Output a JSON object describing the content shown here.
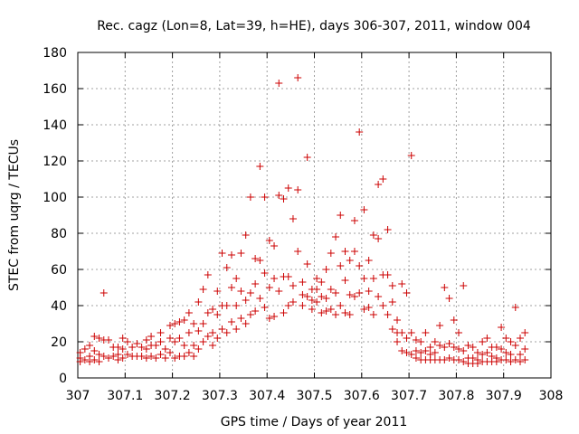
{
  "chart_data": {
    "type": "scatter",
    "title": "Rec. cagz (Lon=8, Lat=39, h=HE), days 306-307, 2011, window 004",
    "xlabel": "GPS time / Days of year 2011",
    "ylabel": "STEC from uqrg / TECUs",
    "xlim": [
      307,
      308
    ],
    "ylim": [
      0,
      180
    ],
    "grid": true,
    "marker": "+",
    "color": "#cc0000",
    "x_ticks": [
      {
        "value": 307.0,
        "label": "307"
      },
      {
        "value": 307.1,
        "label": "307.1"
      },
      {
        "value": 307.2,
        "label": "307.2"
      },
      {
        "value": 307.3,
        "label": "307.3"
      },
      {
        "value": 307.4,
        "label": "307.4"
      },
      {
        "value": 307.5,
        "label": "307.5"
      },
      {
        "value": 307.6,
        "label": "307.6"
      },
      {
        "value": 307.7,
        "label": "307.7"
      },
      {
        "value": 307.8,
        "label": "307.8"
      },
      {
        "value": 307.9,
        "label": "307.9"
      },
      {
        "value": 308.0,
        "label": "308"
      }
    ],
    "y_ticks": [
      {
        "value": 0,
        "label": "0"
      },
      {
        "value": 20,
        "label": "20"
      },
      {
        "value": 40,
        "label": "40"
      },
      {
        "value": 60,
        "label": "60"
      },
      {
        "value": 80,
        "label": "80"
      },
      {
        "value": 100,
        "label": "100"
      },
      {
        "value": 120,
        "label": "120"
      },
      {
        "value": 140,
        "label": "140"
      },
      {
        "value": 160,
        "label": "160"
      },
      {
        "value": 180,
        "label": "180"
      }
    ],
    "points": [
      [
        307.005,
        14
      ],
      [
        307.005,
        11
      ],
      [
        307.005,
        9
      ],
      [
        307.015,
        16
      ],
      [
        307.015,
        10
      ],
      [
        307.025,
        18
      ],
      [
        307.025,
        12
      ],
      [
        307.025,
        9
      ],
      [
        307.035,
        23
      ],
      [
        307.035,
        15
      ],
      [
        307.035,
        10
      ],
      [
        307.045,
        22
      ],
      [
        307.045,
        13
      ],
      [
        307.045,
        9
      ],
      [
        307.055,
        47
      ],
      [
        307.055,
        21
      ],
      [
        307.055,
        12
      ],
      [
        307.065,
        21
      ],
      [
        307.065,
        11
      ],
      [
        307.075,
        17
      ],
      [
        307.075,
        12
      ],
      [
        307.085,
        17
      ],
      [
        307.085,
        13
      ],
      [
        307.085,
        10
      ],
      [
        307.095,
        22
      ],
      [
        307.095,
        16
      ],
      [
        307.095,
        11
      ],
      [
        307.105,
        20
      ],
      [
        307.105,
        13
      ],
      [
        307.115,
        17
      ],
      [
        307.115,
        12
      ],
      [
        307.125,
        19
      ],
      [
        307.125,
        12
      ],
      [
        307.135,
        17
      ],
      [
        307.135,
        12
      ],
      [
        307.145,
        21
      ],
      [
        307.145,
        16
      ],
      [
        307.145,
        11
      ],
      [
        307.155,
        23
      ],
      [
        307.155,
        18
      ],
      [
        307.155,
        12
      ],
      [
        307.165,
        18
      ],
      [
        307.165,
        11
      ],
      [
        307.175,
        25
      ],
      [
        307.175,
        20
      ],
      [
        307.175,
        13
      ],
      [
        307.185,
        16
      ],
      [
        307.185,
        11
      ],
      [
        307.195,
        29
      ],
      [
        307.195,
        22
      ],
      [
        307.195,
        14
      ],
      [
        307.205,
        30
      ],
      [
        307.205,
        20
      ],
      [
        307.205,
        11
      ],
      [
        307.215,
        31
      ],
      [
        307.215,
        22
      ],
      [
        307.215,
        12
      ],
      [
        307.225,
        32
      ],
      [
        307.225,
        18
      ],
      [
        307.225,
        12
      ],
      [
        307.235,
        36
      ],
      [
        307.235,
        25
      ],
      [
        307.235,
        14
      ],
      [
        307.245,
        30
      ],
      [
        307.245,
        18
      ],
      [
        307.245,
        12
      ],
      [
        307.255,
        42
      ],
      [
        307.255,
        26
      ],
      [
        307.255,
        16
      ],
      [
        307.265,
        49
      ],
      [
        307.265,
        30
      ],
      [
        307.265,
        20
      ],
      [
        307.275,
        57
      ],
      [
        307.275,
        36
      ],
      [
        307.275,
        23
      ],
      [
        307.285,
        38
      ],
      [
        307.285,
        25
      ],
      [
        307.285,
        18
      ],
      [
        307.295,
        48
      ],
      [
        307.295,
        35
      ],
      [
        307.295,
        22
      ],
      [
        307.305,
        69
      ],
      [
        307.305,
        40
      ],
      [
        307.305,
        27
      ],
      [
        307.315,
        61
      ],
      [
        307.315,
        40
      ],
      [
        307.315,
        25
      ],
      [
        307.325,
        68
      ],
      [
        307.325,
        50
      ],
      [
        307.325,
        31
      ],
      [
        307.335,
        55
      ],
      [
        307.335,
        40
      ],
      [
        307.335,
        27
      ],
      [
        307.345,
        69
      ],
      [
        307.345,
        48
      ],
      [
        307.345,
        33
      ],
      [
        307.355,
        79
      ],
      [
        307.355,
        43
      ],
      [
        307.355,
        30
      ],
      [
        307.365,
        100
      ],
      [
        307.365,
        47
      ],
      [
        307.365,
        35
      ],
      [
        307.375,
        66
      ],
      [
        307.375,
        52
      ],
      [
        307.375,
        37
      ],
      [
        307.385,
        117
      ],
      [
        307.385,
        65
      ],
      [
        307.385,
        44
      ],
      [
        307.395,
        100
      ],
      [
        307.395,
        58
      ],
      [
        307.395,
        39
      ],
      [
        307.405,
        76
      ],
      [
        307.405,
        50
      ],
      [
        307.405,
        33
      ],
      [
        307.415,
        73
      ],
      [
        307.415,
        55
      ],
      [
        307.415,
        34
      ],
      [
        307.425,
        163
      ],
      [
        307.425,
        101
      ],
      [
        307.425,
        48
      ],
      [
        307.435,
        99
      ],
      [
        307.435,
        56
      ],
      [
        307.435,
        36
      ],
      [
        307.445,
        105
      ],
      [
        307.445,
        56
      ],
      [
        307.445,
        40
      ],
      [
        307.455,
        88
      ],
      [
        307.455,
        51
      ],
      [
        307.455,
        42
      ],
      [
        307.465,
        166
      ],
      [
        307.465,
        104
      ],
      [
        307.465,
        70
      ],
      [
        307.475,
        53
      ],
      [
        307.475,
        46
      ],
      [
        307.475,
        40
      ],
      [
        307.485,
        122
      ],
      [
        307.485,
        63
      ],
      [
        307.485,
        45
      ],
      [
        307.495,
        49
      ],
      [
        307.495,
        43
      ],
      [
        307.495,
        38
      ],
      [
        307.505,
        55
      ],
      [
        307.505,
        49
      ],
      [
        307.505,
        42
      ],
      [
        307.515,
        53
      ],
      [
        307.515,
        45
      ],
      [
        307.515,
        36
      ],
      [
        307.525,
        60
      ],
      [
        307.525,
        44
      ],
      [
        307.525,
        37
      ],
      [
        307.535,
        69
      ],
      [
        307.535,
        49
      ],
      [
        307.535,
        38
      ],
      [
        307.545,
        78
      ],
      [
        307.545,
        47
      ],
      [
        307.545,
        35
      ],
      [
        307.555,
        90
      ],
      [
        307.555,
        62
      ],
      [
        307.555,
        40
      ],
      [
        307.565,
        70
      ],
      [
        307.565,
        54
      ],
      [
        307.565,
        36
      ],
      [
        307.575,
        65
      ],
      [
        307.575,
        46
      ],
      [
        307.575,
        35
      ],
      [
        307.585,
        87
      ],
      [
        307.585,
        70
      ],
      [
        307.585,
        45
      ],
      [
        307.595,
        136
      ],
      [
        307.595,
        62
      ],
      [
        307.595,
        47
      ],
      [
        307.605,
        93
      ],
      [
        307.605,
        55
      ],
      [
        307.605,
        38
      ],
      [
        307.615,
        65
      ],
      [
        307.615,
        48
      ],
      [
        307.615,
        39
      ],
      [
        307.625,
        79
      ],
      [
        307.625,
        55
      ],
      [
        307.625,
        35
      ],
      [
        307.635,
        107
      ],
      [
        307.635,
        77
      ],
      [
        307.635,
        45
      ],
      [
        307.645,
        110
      ],
      [
        307.645,
        57
      ],
      [
        307.645,
        40
      ],
      [
        307.655,
        82
      ],
      [
        307.655,
        57
      ],
      [
        307.655,
        35
      ],
      [
        307.665,
        51
      ],
      [
        307.665,
        42
      ],
      [
        307.665,
        27
      ],
      [
        307.675,
        32
      ],
      [
        307.675,
        25
      ],
      [
        307.675,
        20
      ],
      [
        307.685,
        52
      ],
      [
        307.685,
        25
      ],
      [
        307.685,
        15
      ],
      [
        307.695,
        47
      ],
      [
        307.695,
        22
      ],
      [
        307.695,
        14
      ],
      [
        307.705,
        123
      ],
      [
        307.705,
        25
      ],
      [
        307.705,
        13
      ],
      [
        307.715,
        21
      ],
      [
        307.715,
        15
      ],
      [
        307.715,
        11
      ],
      [
        307.725,
        20
      ],
      [
        307.725,
        14
      ],
      [
        307.725,
        10
      ],
      [
        307.735,
        25
      ],
      [
        307.735,
        15
      ],
      [
        307.735,
        10
      ],
      [
        307.745,
        17
      ],
      [
        307.745,
        13
      ],
      [
        307.745,
        10
      ],
      [
        307.755,
        20
      ],
      [
        307.755,
        14
      ],
      [
        307.755,
        10
      ],
      [
        307.765,
        29
      ],
      [
        307.765,
        18
      ],
      [
        307.765,
        10
      ],
      [
        307.775,
        50
      ],
      [
        307.775,
        17
      ],
      [
        307.775,
        10
      ],
      [
        307.785,
        44
      ],
      [
        307.785,
        19
      ],
      [
        307.785,
        11
      ],
      [
        307.795,
        32
      ],
      [
        307.795,
        17
      ],
      [
        307.795,
        10
      ],
      [
        307.805,
        25
      ],
      [
        307.805,
        16
      ],
      [
        307.805,
        10
      ],
      [
        307.815,
        51
      ],
      [
        307.815,
        15
      ],
      [
        307.815,
        9
      ],
      [
        307.825,
        18
      ],
      [
        307.825,
        11
      ],
      [
        307.825,
        8
      ],
      [
        307.835,
        17
      ],
      [
        307.835,
        11
      ],
      [
        307.835,
        8
      ],
      [
        307.845,
        14
      ],
      [
        307.845,
        10
      ],
      [
        307.845,
        8
      ],
      [
        307.855,
        20
      ],
      [
        307.855,
        13
      ],
      [
        307.855,
        9
      ],
      [
        307.865,
        22
      ],
      [
        307.865,
        14
      ],
      [
        307.865,
        9
      ],
      [
        307.875,
        17
      ],
      [
        307.875,
        12
      ],
      [
        307.875,
        9
      ],
      [
        307.885,
        17
      ],
      [
        307.885,
        11
      ],
      [
        307.885,
        9
      ],
      [
        307.895,
        28
      ],
      [
        307.895,
        16
      ],
      [
        307.895,
        10
      ],
      [
        307.905,
        22
      ],
      [
        307.905,
        14
      ],
      [
        307.905,
        10
      ],
      [
        307.915,
        20
      ],
      [
        307.915,
        13
      ],
      [
        307.915,
        9
      ],
      [
        307.925,
        39
      ],
      [
        307.925,
        18
      ],
      [
        307.925,
        10
      ],
      [
        307.935,
        22
      ],
      [
        307.935,
        13
      ],
      [
        307.935,
        9
      ],
      [
        307.945,
        25
      ],
      [
        307.945,
        16
      ],
      [
        307.945,
        10
      ]
    ]
  }
}
